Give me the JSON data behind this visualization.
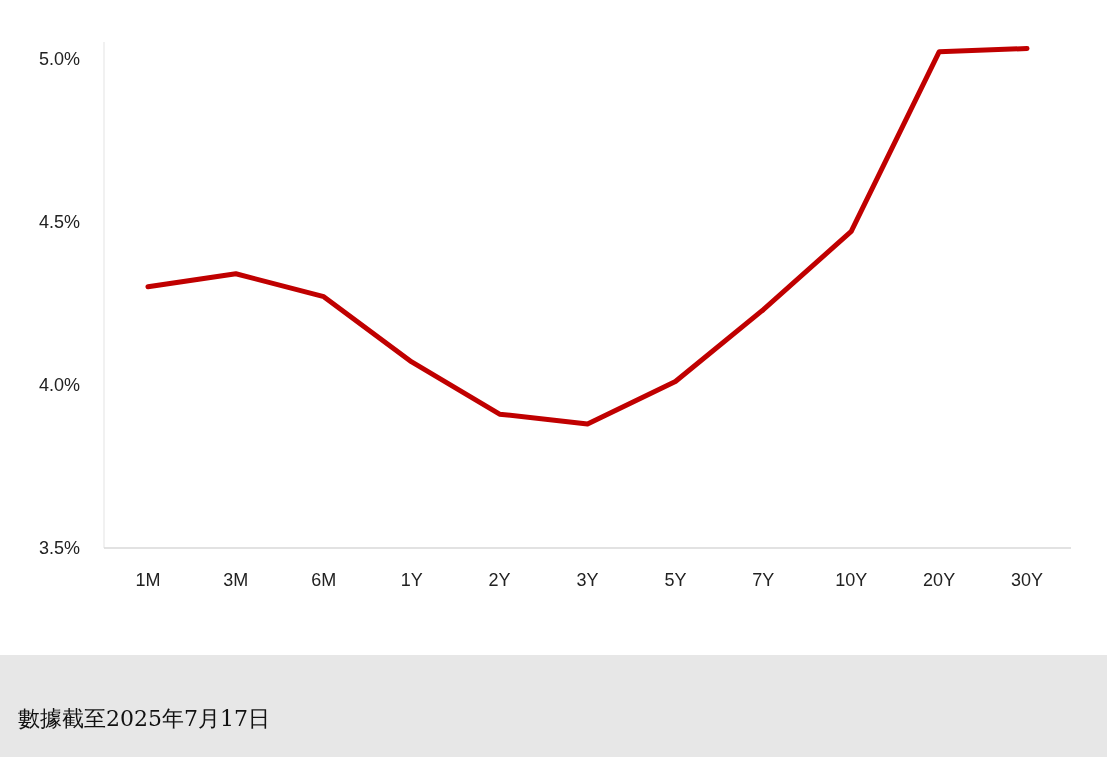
{
  "chart_data": {
    "type": "line",
    "categories": [
      "1M",
      "3M",
      "6M",
      "1Y",
      "2Y",
      "3Y",
      "5Y",
      "7Y",
      "10Y",
      "20Y",
      "30Y"
    ],
    "series": [
      {
        "color": "#c00000",
        "values": [
          4.3,
          4.34,
          4.27,
          4.07,
          3.91,
          3.88,
          4.01,
          4.23,
          4.47,
          5.02,
          5.03
        ]
      }
    ],
    "ylim": [
      3.5,
      5.05
    ],
    "yticks": [
      {
        "value": 3.5,
        "label": "3.5%"
      },
      {
        "value": 4.0,
        "label": "4.0%"
      },
      {
        "value": 4.5,
        "label": "4.5%"
      },
      {
        "value": 5.0,
        "label": "5.0%"
      }
    ],
    "annotations": [
      "數據截至2025年7月17日"
    ]
  }
}
